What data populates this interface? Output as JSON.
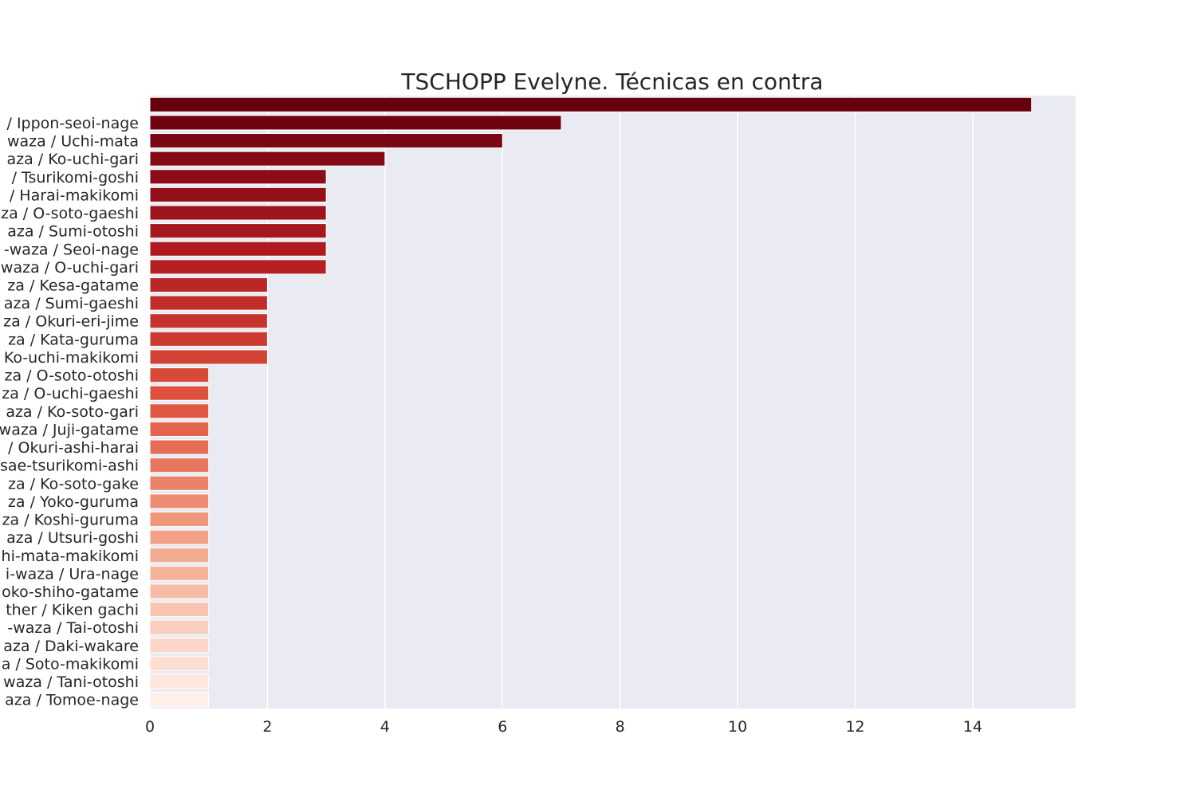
{
  "chart_data": {
    "type": "bar",
    "orientation": "horizontal",
    "title": "TSCHOPP Evelyne. Técnicas en contra",
    "xlabel": "",
    "ylabel": "",
    "xlim": [
      0,
      15.75
    ],
    "xticks": [
      "0",
      "2",
      "4",
      "6",
      "8",
      "10",
      "12",
      "14"
    ],
    "grid": true,
    "palette": "Reds (dark to light)",
    "categories": [
      "",
      "/ Ippon-seoi-nage",
      "waza / Uchi-mata",
      "aza / Ko-uchi-gari",
      "/ Tsurikomi-goshi",
      "/ Harai-makikomi",
      "za / O-soto-gaeshi",
      "aza / Sumi-otoshi",
      "-waza / Seoi-nage",
      "waza / O-uchi-gari",
      "za / Kesa-gatame",
      "aza / Sumi-gaeshi",
      "za / Okuri-eri-jime",
      "za / Kata-guruma",
      "Ko-uchi-makikomi",
      "za / O-soto-otoshi",
      "za / O-uchi-gaeshi",
      "aza / Ko-soto-gari",
      "waza / Juji-gatame",
      "/ Okuri-ashi-harai",
      "sae-tsurikomi-ashi",
      "za / Ko-soto-gake",
      "za / Yoko-guruma",
      "za / Koshi-guruma",
      "aza / Utsuri-goshi",
      "hi-mata-makikomi",
      "i-waza / Ura-nage",
      "oko-shiho-gatame",
      "ther / Kiken gachi",
      "-waza / Tai-otoshi",
      "aza / Daki-wakare",
      "a / Soto-makikomi",
      "waza / Tani-otoshi",
      "aza / Tomoe-nage"
    ],
    "values": [
      15,
      7,
      6,
      4,
      3,
      3,
      3,
      3,
      3,
      3,
      2,
      2,
      2,
      2,
      2,
      1,
      1,
      1,
      1,
      1,
      1,
      1,
      1,
      1,
      1,
      1,
      1,
      1,
      1,
      1,
      1,
      1,
      1,
      1
    ],
    "colors": {
      "dark": "#67000d",
      "mid": "#e0533d",
      "light": "#fff0ea",
      "plot_background": "#eaeaf2",
      "grid": "#ffffff"
    }
  }
}
